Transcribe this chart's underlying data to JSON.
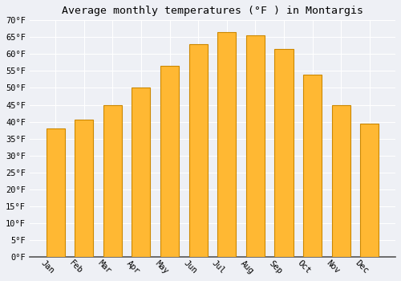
{
  "title": "Average monthly temperatures (°F ) in Montargis",
  "months": [
    "Jan",
    "Feb",
    "Mar",
    "Apr",
    "May",
    "Jun",
    "Jul",
    "Aug",
    "Sep",
    "Oct",
    "Nov",
    "Dec"
  ],
  "values": [
    38,
    40.5,
    45,
    50,
    56.5,
    63,
    66.5,
    65.5,
    61.5,
    54,
    45,
    39.5
  ],
  "bar_color": "#FFA500",
  "bar_face_color": "#FFB833",
  "bar_edge_color": "#CC8800",
  "ylim": [
    0,
    70
  ],
  "yticks": [
    0,
    5,
    10,
    15,
    20,
    25,
    30,
    35,
    40,
    45,
    50,
    55,
    60,
    65,
    70
  ],
  "ylabel_suffix": "°F",
  "background_color": "#eef0f5",
  "plot_bg_color": "#eef0f5",
  "grid_color": "#ffffff",
  "title_fontsize": 9.5,
  "tick_fontsize": 7.5,
  "xlabel_rotation": -45
}
